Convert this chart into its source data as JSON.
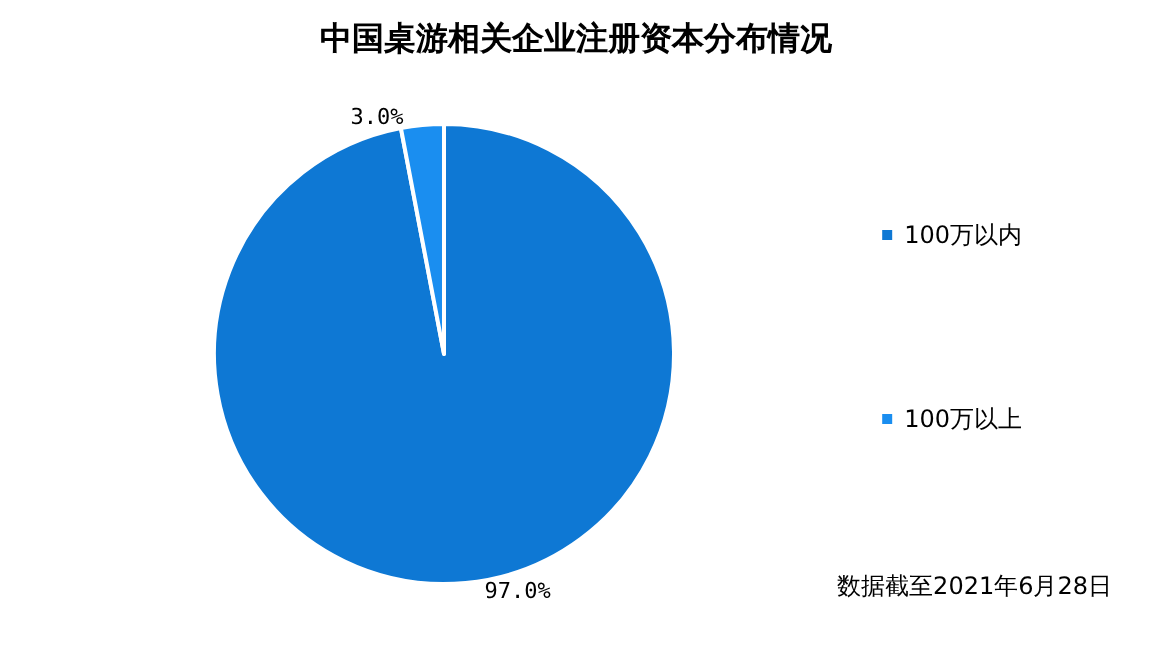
{
  "chart_data": {
    "type": "pie",
    "title": "中国桌游相关企业注册资本分布情况",
    "categories": [
      "100万以内",
      "100万以上"
    ],
    "values": [
      97.0,
      3.0
    ],
    "colors": [
      "#0e78d4",
      "#1a8ef0"
    ],
    "value_labels": [
      "97.0%",
      "3.0%"
    ],
    "legend": "right",
    "annotations": [
      "数据截至2021年6月28日"
    ]
  }
}
